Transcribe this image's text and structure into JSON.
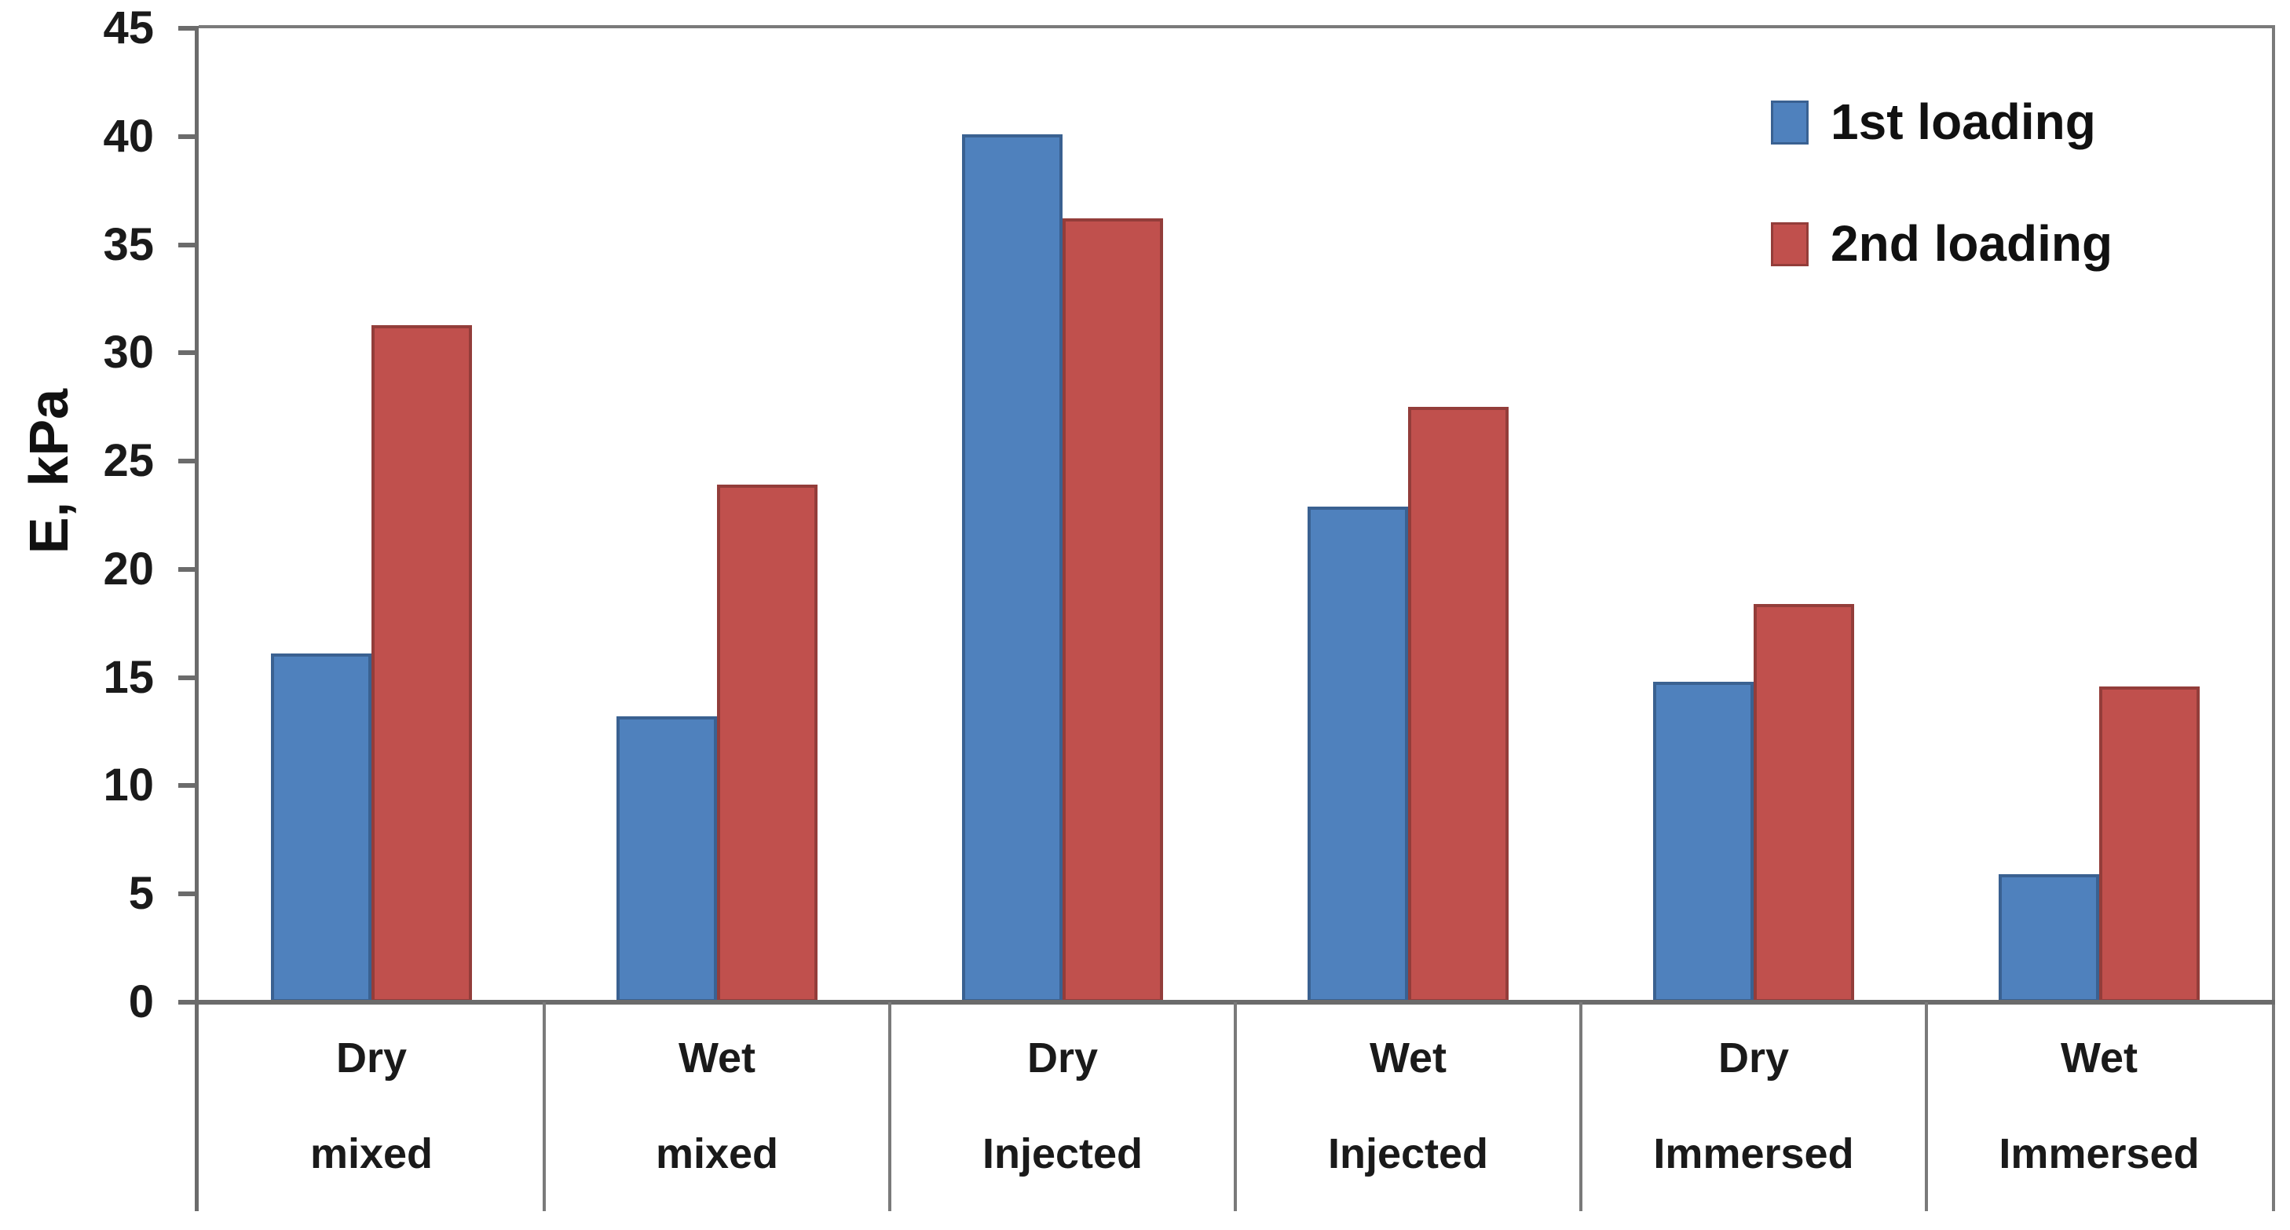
{
  "chart_data": {
    "type": "bar",
    "title": "",
    "ylabel": "E, kPa",
    "xlabel": "",
    "ylim": [
      0,
      45
    ],
    "ytick_step": 5,
    "yticks": [
      0,
      5,
      10,
      15,
      20,
      25,
      30,
      35,
      40,
      45
    ],
    "grid": false,
    "legend_position": "top-right",
    "categories": [
      {
        "top": "Dry",
        "bottom": "mixed"
      },
      {
        "top": "Wet",
        "bottom": "mixed"
      },
      {
        "top": "Dry",
        "bottom": "Injected"
      },
      {
        "top": "Wet",
        "bottom": "Injected"
      },
      {
        "top": "Dry",
        "bottom": "Immersed"
      },
      {
        "top": "Wet",
        "bottom": "Immersed"
      }
    ],
    "series": [
      {
        "name": "1st loading",
        "color": "#4f81bd",
        "edge_color": "#3a6191",
        "values": [
          16.1,
          13.2,
          40.1,
          22.9,
          14.8,
          5.9
        ]
      },
      {
        "name": "2nd loading",
        "color": "#c0504d",
        "edge_color": "#933d3a",
        "values": [
          31.3,
          23.9,
          36.2,
          27.5,
          18.4,
          14.6
        ]
      }
    ],
    "axis_color": "#6b6b6b",
    "tick_label_color": "#1a1a1a"
  }
}
